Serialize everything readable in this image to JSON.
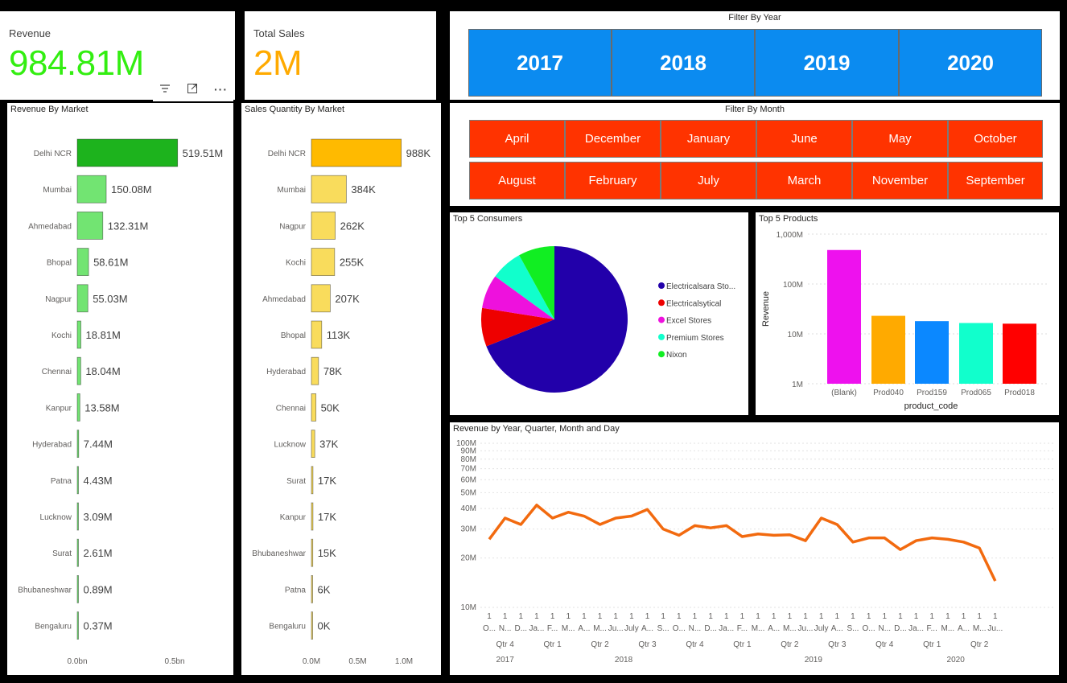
{
  "kpi": {
    "revenue": {
      "label": "Revenue",
      "value": "984.81M",
      "color": "#33ee11"
    },
    "sales": {
      "label": "Total Sales",
      "value": "2M",
      "color": "#ffaa00"
    }
  },
  "filter_year": {
    "title": "Filter By Year",
    "years": [
      "2017",
      "2018",
      "2019",
      "2020"
    ],
    "color": "#0b8bf0"
  },
  "filter_month": {
    "title": "Filter By Month",
    "months": [
      "April",
      "December",
      "January",
      "June",
      "May",
      "October",
      "August",
      "February",
      "July",
      "March",
      "November",
      "September"
    ],
    "color": "#ff3300"
  },
  "visual_header_icons": [
    "filter-icon",
    "focus-mode-icon",
    "more-options-icon"
  ],
  "chart_data": [
    {
      "id": "revenue_by_market",
      "type": "bar",
      "orientation": "horizontal",
      "title": "Revenue By Market",
      "categories": [
        "Delhi NCR",
        "Mumbai",
        "Ahmedabad",
        "Bhopal",
        "Nagpur",
        "Kochi",
        "Chennai",
        "Kanpur",
        "Hyderabad",
        "Patna",
        "Lucknow",
        "Surat",
        "Bhubaneshwar",
        "Bengaluru"
      ],
      "values": [
        519.51,
        150.08,
        132.31,
        58.61,
        55.03,
        18.81,
        18.04,
        13.58,
        7.44,
        4.43,
        3.09,
        2.61,
        0.89,
        0.37
      ],
      "labels": [
        "519.51M",
        "150.08M",
        "132.31M",
        "58.61M",
        "55.03M",
        "18.81M",
        "18.04M",
        "13.58M",
        "7.44M",
        "4.43M",
        "3.09M",
        "2.61M",
        "0.89M",
        "0.37M"
      ],
      "xticks": [
        "0.0bn",
        "0.5bn"
      ],
      "xlim": [
        0,
        500
      ],
      "colors": {
        "highlight": "#1db31d",
        "normal": "#72e472"
      }
    },
    {
      "id": "sales_quantity_by_market",
      "type": "bar",
      "orientation": "horizontal",
      "title": "Sales Quantity By Market",
      "categories": [
        "Delhi NCR",
        "Mumbai",
        "Nagpur",
        "Kochi",
        "Ahmedabad",
        "Bhopal",
        "Hyderabad",
        "Chennai",
        "Lucknow",
        "Surat",
        "Kanpur",
        "Bhubaneshwar",
        "Patna",
        "Bengaluru"
      ],
      "values": [
        988,
        384,
        262,
        255,
        207,
        113,
        78,
        50,
        37,
        17,
        17,
        15,
        6,
        0
      ],
      "labels": [
        "988K",
        "384K",
        "262K",
        "255K",
        "207K",
        "113K",
        "78K",
        "50K",
        "37K",
        "17K",
        "17K",
        "15K",
        "6K",
        "0K"
      ],
      "xticks": [
        "0.0M",
        "0.5M",
        "1.0M"
      ],
      "xlim": [
        0,
        1000
      ],
      "colors": {
        "highlight": "#ffba00",
        "normal": "#f9dc5c"
      }
    },
    {
      "id": "top5_consumers",
      "type": "pie",
      "title": "Top 5 Consumers",
      "labels": [
        "Electricalsara Sto...",
        "Electricalsytical",
        "Excel Stores",
        "Premium Stores",
        "Nixon"
      ],
      "values": [
        69,
        8.5,
        7.5,
        7,
        8
      ],
      "colors": [
        "#2200aa",
        "#ee0000",
        "#ee11dd",
        "#11ffcc",
        "#11ee22"
      ]
    },
    {
      "id": "top5_products",
      "type": "bar",
      "title": "Top 5 Products",
      "xlabel": "product_code",
      "ylabel": "Revenue",
      "scale": "log",
      "yticks": [
        "1M",
        "10M",
        "100M",
        "1,000M"
      ],
      "ylim": [
        1,
        1000
      ],
      "categories": [
        "(Blank)",
        "Prod040",
        "Prod159",
        "Prod065",
        "Prod018"
      ],
      "values": [
        480,
        23,
        18,
        16.5,
        16
      ],
      "colors": [
        "#ee11ee",
        "#ffaa00",
        "#0b88ff",
        "#11ffcc",
        "#ff0000"
      ]
    },
    {
      "id": "revenue_by_period",
      "type": "line",
      "title": "Revenue by Year, Quarter, Month and Day",
      "scale": "log",
      "yticks": [
        "10M",
        "20M",
        "30M",
        "40M",
        "50M",
        "60M",
        "70M",
        "80M",
        "90M",
        "100M"
      ],
      "ylim": [
        10,
        100
      ],
      "values": [
        26,
        35,
        32,
        42,
        35,
        38,
        36,
        32,
        35,
        36,
        39.5,
        30,
        27.5,
        31.5,
        30.5,
        31.5,
        27,
        28,
        27.5,
        27.7,
        25.5,
        35,
        32,
        25,
        26.5,
        26.5,
        22.5,
        25.5,
        26.5,
        26,
        25,
        23,
        14.5
      ],
      "color": "#f26a0f",
      "day_labels": [
        "1",
        "1",
        "1",
        "1",
        "1",
        "1",
        "1",
        "1",
        "1",
        "1",
        "1",
        "1",
        "1",
        "1",
        "1",
        "1",
        "1",
        "1",
        "1",
        "1",
        "1",
        "1",
        "1",
        "1",
        "1",
        "1",
        "1",
        "1",
        "1",
        "1",
        "1",
        "1",
        "1"
      ],
      "month_labels": [
        "O...",
        "N...",
        "D...",
        "Ja...",
        "F...",
        "M...",
        "A...",
        "M...",
        "Ju...",
        "July",
        "A...",
        "S...",
        "O...",
        "N...",
        "D...",
        "Ja...",
        "F...",
        "M...",
        "A...",
        "M...",
        "Ju...",
        "July",
        "A...",
        "S...",
        "O...",
        "N...",
        "D...",
        "Ja...",
        "F...",
        "M...",
        "A...",
        "M...",
        "Ju..."
      ],
      "quarter_labels": [
        "Qtr 4",
        "Qtr 1",
        "Qtr 2",
        "Qtr 3",
        "Qtr 4",
        "Qtr 1",
        "Qtr 2",
        "Qtr 3",
        "Qtr 4",
        "Qtr 1",
        "Qtr 2"
      ],
      "quarter_month_counts": [
        3,
        3,
        3,
        3,
        3,
        3,
        3,
        3,
        3,
        3,
        3
      ],
      "year_labels": [
        "2017",
        "2018",
        "2019",
        "2020"
      ],
      "year_month_counts": [
        3,
        12,
        12,
        6
      ]
    }
  ]
}
